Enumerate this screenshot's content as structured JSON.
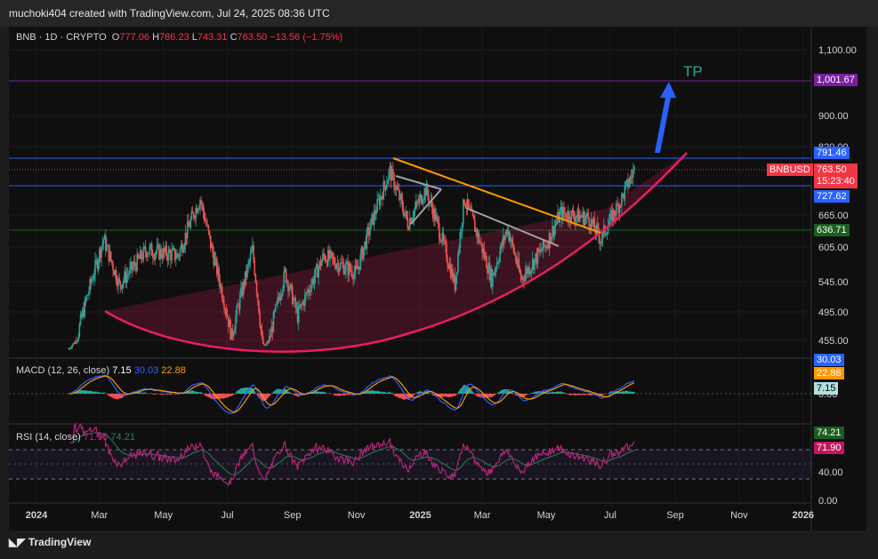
{
  "header": {
    "text": "muchoki404 created with TradingView.com, Jul 24, 2025 08:36 UTC"
  },
  "legend": {
    "symbol": "BNB · 1D · CRYPTO",
    "o_label": "O",
    "o": "777.06",
    "h_label": "H",
    "h": "786.23",
    "l_label": "L",
    "l": "743.31",
    "c_label": "C",
    "c": "763.50",
    "chg": "−13.56 (−1.75%)"
  },
  "macd": {
    "label": "MACD (12, 26, close)",
    "v1": "7.15",
    "v2": "30.03",
    "v3": "22.88"
  },
  "rsi": {
    "label": "RSI (14, close)",
    "v1": "71.90",
    "v2": "74.21"
  },
  "annotation": {
    "tp": "TP"
  },
  "price_tags": {
    "level_1001": "1,001.67",
    "level_791": "791.46",
    "symbol_tag": "BNBUSD",
    "last": "763.50",
    "timer": "15:23:40",
    "level_727": "727.62",
    "level_636": "636.71",
    "macd_a": "30.03",
    "macd_b": "22.88",
    "macd_c": "7.15",
    "rsi_a": "74.21",
    "rsi_b": "71.90"
  },
  "colors": {
    "bg": "#0f0f0f",
    "up": "#26a69a",
    "down": "#ef5350",
    "macd": "#2962ff",
    "signal": "#ff9800",
    "rsi": "#b5257a",
    "rsi_ma": "#2e7d5b",
    "curve": "#e91e63",
    "arrow": "#2962ff",
    "tp": "#26a69a",
    "triangle_top": "#ff9800",
    "triangle_mid": "#a0a0a0"
  },
  "footer": {
    "brand": "TradingView"
  },
  "chart_data": {
    "type": "candlestick",
    "symbol": "BNBUSD",
    "price_axis_ticks": [
      "1,100.00",
      "900.00",
      "820.00",
      "665.00",
      "605.00",
      "545.00",
      "495.00",
      "455.00"
    ],
    "macd_axis_ticks": [
      "0.00"
    ],
    "rsi_axis_ticks": [
      "40.00",
      "0.00"
    ],
    "time_axis_ticks": [
      "2024",
      "Mar",
      "May",
      "Jul",
      "Sep",
      "Nov",
      "2025",
      "Mar",
      "May",
      "Jul",
      "Sep",
      "Nov",
      "2026"
    ],
    "horizontal_levels": [
      1001.67,
      791.46,
      727.62,
      636.71
    ],
    "price_key_points": [
      {
        "x": "2024-02-01",
        "y": 410
      },
      {
        "x": "2024-03-05",
        "y": 620
      },
      {
        "x": "2024-03-20",
        "y": 540
      },
      {
        "x": "2024-04-15",
        "y": 600
      },
      {
        "x": "2024-05-15",
        "y": 590
      },
      {
        "x": "2024-06-05",
        "y": 700
      },
      {
        "x": "2024-06-15",
        "y": 610
      },
      {
        "x": "2024-07-05",
        "y": 460
      },
      {
        "x": "2024-07-25",
        "y": 600
      },
      {
        "x": "2024-08-05",
        "y": 420
      },
      {
        "x": "2024-08-25",
        "y": 560
      },
      {
        "x": "2024-09-06",
        "y": 490
      },
      {
        "x": "2024-10-01",
        "y": 590
      },
      {
        "x": "2024-11-01",
        "y": 560
      },
      {
        "x": "2024-12-03",
        "y": 760
      },
      {
        "x": "2024-12-20",
        "y": 650
      },
      {
        "x": "2025-01-06",
        "y": 720
      },
      {
        "x": "2025-02-03",
        "y": 540
      },
      {
        "x": "2025-02-12",
        "y": 700
      },
      {
        "x": "2025-03-10",
        "y": 550
      },
      {
        "x": "2025-03-25",
        "y": 640
      },
      {
        "x": "2025-04-07",
        "y": 550
      },
      {
        "x": "2025-05-01",
        "y": 610
      },
      {
        "x": "2025-05-15",
        "y": 670
      },
      {
        "x": "2025-06-10",
        "y": 660
      },
      {
        "x": "2025-06-22",
        "y": 620
      },
      {
        "x": "2025-07-10",
        "y": 690
      },
      {
        "x": "2025-07-24",
        "y": 763.5
      }
    ],
    "macd_last": {
      "macd": 30.03,
      "signal": 22.88,
      "histogram": 7.15
    },
    "rsi_last": {
      "rsi": 71.9,
      "ma": 74.21
    }
  }
}
